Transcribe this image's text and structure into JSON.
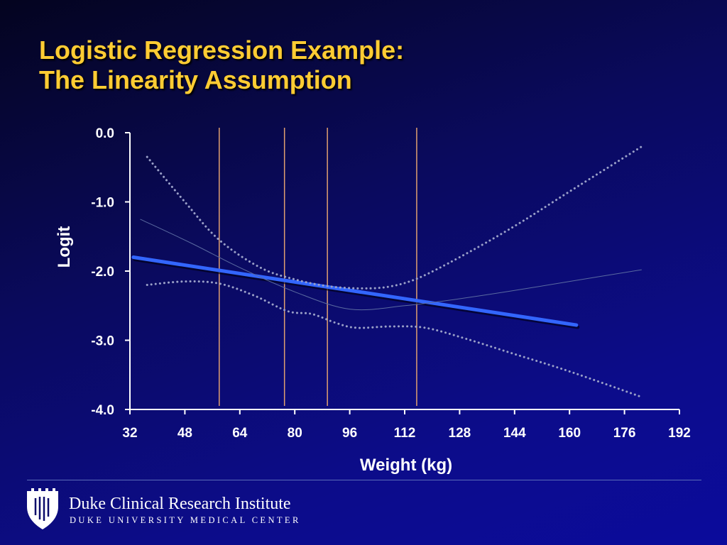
{
  "slide": {
    "title_line1": "Logistic Regression Example:",
    "title_line2": "The Linearity Assumption"
  },
  "colors": {
    "title": "#ffcc33",
    "fit_line": "#3366ff",
    "ci_band": "#9aa0c8",
    "spline": "#5a6aa0",
    "knot_line": "#e0a070",
    "axis": "#ffffff"
  },
  "footer": {
    "org_name": "Duke Clinical Research Institute",
    "org_subtitle": "DUKE UNIVERSITY MEDICAL CENTER",
    "logo_icon": "duke-chapel-shield-icon"
  },
  "chart_data": {
    "type": "line",
    "title": "",
    "xlabel": "Weight (kg)",
    "ylabel": "Logit",
    "xlim": [
      32,
      192
    ],
    "ylim": [
      -4.0,
      0.0
    ],
    "x_ticks": [
      32,
      48,
      64,
      80,
      96,
      112,
      128,
      144,
      160,
      176,
      192
    ],
    "y_ticks": [
      "0.0",
      "-1.0",
      "-2.0",
      "-3.0",
      "-4.0"
    ],
    "y_tick_values": [
      0,
      -1,
      -2,
      -3,
      -4
    ],
    "grid": false,
    "vertical_lines_x": [
      58,
      77,
      89.5,
      115.5
    ],
    "series": [
      {
        "style": "linear-fit",
        "x": [
          33,
          162
        ],
        "y": [
          -1.8,
          -2.78
        ]
      },
      {
        "style": "spline",
        "x": [
          35,
          50,
          64,
          80,
          96,
          112,
          128,
          144,
          160,
          181
        ],
        "y": [
          -1.25,
          -1.6,
          -1.95,
          -2.3,
          -2.55,
          -2.5,
          -2.4,
          -2.28,
          -2.15,
          -1.98
        ]
      },
      {
        "style": "confidence-upper",
        "x": [
          37,
          48,
          58,
          70,
          80,
          90,
          100,
          108,
          116,
          128,
          144,
          160,
          181
        ],
        "y": [
          -0.35,
          -1.0,
          -1.55,
          -1.95,
          -2.12,
          -2.22,
          -2.25,
          -2.22,
          -2.1,
          -1.8,
          -1.35,
          -0.85,
          -0.2
        ]
      },
      {
        "style": "confidence-lower",
        "x": [
          37,
          48,
          58,
          68,
          78,
          85,
          92,
          98,
          108,
          118,
          130,
          144,
          160,
          181
        ],
        "y": [
          -2.2,
          -2.15,
          -2.18,
          -2.35,
          -2.58,
          -2.62,
          -2.75,
          -2.82,
          -2.8,
          -2.82,
          -2.98,
          -3.2,
          -3.45,
          -3.82
        ]
      }
    ]
  }
}
